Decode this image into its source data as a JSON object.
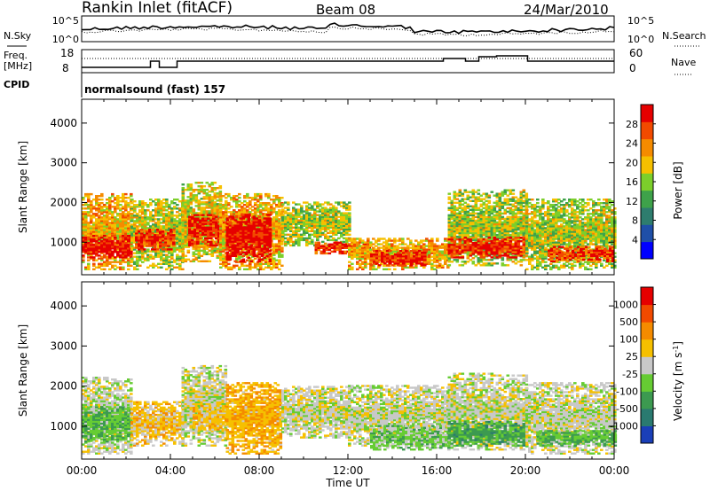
{
  "header": {
    "station": "Rankin Inlet (fitACF)",
    "beam": "Beam 08",
    "date": "24/Mar/2010"
  },
  "panels": {
    "nsky_label": "N.Sky",
    "nsearch_label": "N.Search",
    "nsky_ticks": [
      "10^5",
      "10^0"
    ],
    "nsearch_ticks": [
      "10^5",
      "10^0"
    ],
    "freq_label_1": "Freq.",
    "freq_label_2": "[MHz]",
    "freq_ticks": [
      "18",
      "8"
    ],
    "nave_label": "Nave",
    "nave_ticks": [
      "60",
      "0"
    ],
    "cpid_label": "CPID",
    "cpid_text": "normalsound (fast) 157"
  },
  "colors": {
    "power_scale": [
      "#0000ff",
      "#1f4fa8",
      "#2e7d6e",
      "#3ea24a",
      "#7ccf2b",
      "#f6c000",
      "#f58b00",
      "#f24a00",
      "#e60000"
    ],
    "velocity_scale": [
      "#1a3fb8",
      "#2a7a70",
      "#3c9a50",
      "#66cc33",
      "#c8c8c8",
      "#f6c000",
      "#f58b00",
      "#f24a00",
      "#e60000"
    ]
  },
  "chart_data": [
    {
      "type": "heatmap",
      "name": "Power",
      "ylabel": "Slant Range [km]",
      "xlabel": "Time UT",
      "xticks": [
        "00:00",
        "04:00",
        "08:00",
        "12:00",
        "16:00",
        "20:00",
        "00:00"
      ],
      "yticks": [
        "1000",
        "2000",
        "3000",
        "4000"
      ],
      "xlim_hours": [
        0,
        24
      ],
      "ylim_km": [
        180,
        4600
      ],
      "colorbar": {
        "label": "Power [dB]",
        "ticks": [
          "28",
          "24",
          "20",
          "16",
          "12",
          "8",
          "4"
        ],
        "range": [
          0,
          30
        ]
      },
      "bands": [
        {
          "t": [
            0,
            2.2
          ],
          "r": [
            300,
            2200
          ],
          "level": 20
        },
        {
          "t": [
            0,
            2.2
          ],
          "r": [
            600,
            1150
          ],
          "level": 28
        },
        {
          "t": [
            2.2,
            4.5
          ],
          "r": [
            300,
            2100
          ],
          "level": 16
        },
        {
          "t": [
            2.4,
            4.2
          ],
          "r": [
            800,
            1300
          ],
          "level": 26
        },
        {
          "t": [
            4.5,
            6.2
          ],
          "r": [
            500,
            2500
          ],
          "level": 18
        },
        {
          "t": [
            4.8,
            6.5
          ],
          "r": [
            900,
            1700
          ],
          "level": 28
        },
        {
          "t": [
            6.2,
            9.0
          ],
          "r": [
            300,
            2200
          ],
          "level": 20
        },
        {
          "t": [
            6.5,
            8.5
          ],
          "r": [
            500,
            1700
          ],
          "level": 29
        },
        {
          "t": [
            9.0,
            12.0
          ],
          "r": [
            900,
            2000
          ],
          "level": 16
        },
        {
          "t": [
            10.5,
            13.0
          ],
          "r": [
            700,
            1000
          ],
          "level": 26
        },
        {
          "t": [
            12.0,
            16.5
          ],
          "r": [
            300,
            1100
          ],
          "level": 20
        },
        {
          "t": [
            13.0,
            15.5
          ],
          "r": [
            400,
            800
          ],
          "level": 27
        },
        {
          "t": [
            16.5,
            20.0
          ],
          "r": [
            400,
            2300
          ],
          "level": 16
        },
        {
          "t": [
            16.5,
            20.0
          ],
          "r": [
            600,
            1100
          ],
          "level": 27
        },
        {
          "t": [
            20.0,
            24.0
          ],
          "r": [
            300,
            2100
          ],
          "level": 16
        },
        {
          "t": [
            21.0,
            24.0
          ],
          "r": [
            500,
            900
          ],
          "level": 26
        }
      ]
    },
    {
      "type": "heatmap",
      "name": "Velocity",
      "ylabel": "Slant Range [km]",
      "xlabel": "Time UT",
      "xticks": [
        "00:00",
        "04:00",
        "08:00",
        "12:00",
        "16:00",
        "20:00",
        "00:00"
      ],
      "yticks": [
        "1000",
        "2000",
        "3000",
        "4000"
      ],
      "xlim_hours": [
        0,
        24
      ],
      "ylim_km": [
        180,
        4600
      ],
      "colorbar": {
        "label": "Velocity [m s^-1]",
        "ticks": [
          "1000",
          "500",
          "100",
          "25",
          "-25",
          "-100",
          "-500",
          "-1000"
        ],
        "range": [
          -1000,
          1000
        ]
      },
      "bands": [
        {
          "t": [
            0,
            2.2
          ],
          "r": [
            300,
            2200
          ],
          "level": 0
        },
        {
          "t": [
            0,
            2.2
          ],
          "r": [
            600,
            1500
          ],
          "level": -300
        },
        {
          "t": [
            2.2,
            4.5
          ],
          "r": [
            500,
            1600
          ],
          "level": 200
        },
        {
          "t": [
            4.5,
            6.5
          ],
          "r": [
            500,
            2500
          ],
          "level": 0
        },
        {
          "t": [
            5.0,
            6.5
          ],
          "r": [
            900,
            1500
          ],
          "level": 250
        },
        {
          "t": [
            6.5,
            9.0
          ],
          "r": [
            300,
            2100
          ],
          "level": 300
        },
        {
          "t": [
            9.0,
            12.0
          ],
          "r": [
            700,
            2000
          ],
          "level": 0
        },
        {
          "t": [
            12.0,
            16.5
          ],
          "r": [
            500,
            2000
          ],
          "level": 0
        },
        {
          "t": [
            13.0,
            16.5
          ],
          "r": [
            400,
            1000
          ],
          "level": -200
        },
        {
          "t": [
            16.5,
            20.0
          ],
          "r": [
            400,
            2300
          ],
          "level": 0
        },
        {
          "t": [
            16.5,
            20.0
          ],
          "r": [
            500,
            1100
          ],
          "level": -400
        },
        {
          "t": [
            20.0,
            24.0
          ],
          "r": [
            300,
            2100
          ],
          "level": 0
        },
        {
          "t": [
            20.5,
            24.0
          ],
          "r": [
            500,
            900
          ],
          "level": -300
        }
      ]
    }
  ]
}
